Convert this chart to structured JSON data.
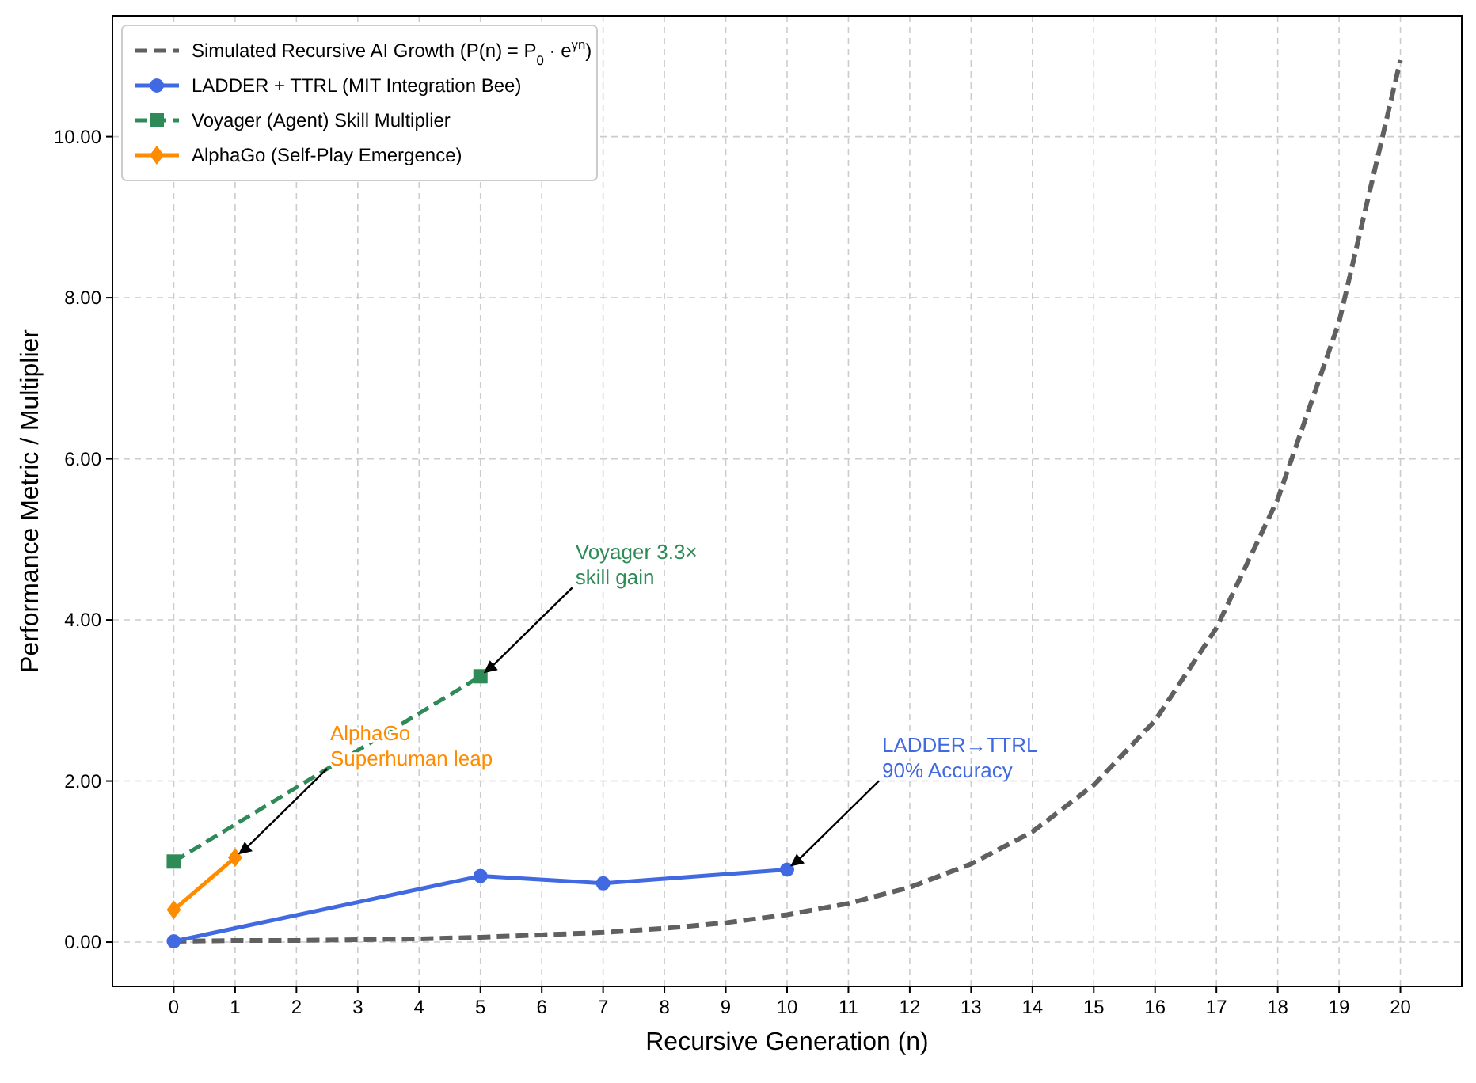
{
  "chart_data": {
    "type": "line",
    "xlabel": "Recursive Generation (n)",
    "ylabel": "Performance Metric / Multiplier",
    "xlim": [
      -1,
      21
    ],
    "ylim": [
      -0.55,
      11.5
    ],
    "xticks": [
      0,
      1,
      2,
      3,
      4,
      5,
      6,
      7,
      8,
      9,
      10,
      11,
      12,
      13,
      14,
      15,
      16,
      17,
      18,
      19,
      20
    ],
    "yticks": [
      {
        "value": 0,
        "label": "0.00"
      },
      {
        "value": 2,
        "label": "2.00"
      },
      {
        "value": 4,
        "label": "4.00"
      },
      {
        "value": 6,
        "label": "6.00"
      },
      {
        "value": 8,
        "label": "8.00"
      },
      {
        "value": 10,
        "label": "10.00"
      }
    ],
    "grid": true,
    "legend": "top left",
    "series": [
      {
        "name": "Simulated Recursive AI Growth (P(n) = P$_{0}$ · e$^{γn}$)",
        "color": "#606060",
        "line_style": "dashed",
        "marker": "none",
        "x": [
          0,
          1,
          2,
          3,
          4,
          5,
          6,
          7,
          8,
          9,
          10,
          11,
          12,
          13,
          14,
          15,
          16,
          17,
          18,
          19,
          20
        ],
        "values": [
          0.01,
          0.02,
          0.02,
          0.03,
          0.04,
          0.06,
          0.09,
          0.12,
          0.17,
          0.24,
          0.34,
          0.48,
          0.68,
          0.97,
          1.37,
          1.95,
          2.75,
          3.9,
          5.5,
          7.7,
          10.95
        ]
      },
      {
        "name": "LADDER + TTRL (MIT Integration Bee)",
        "color": "#4169e1",
        "line_style": "solid",
        "marker": "circle",
        "x": [
          0,
          5,
          7,
          10
        ],
        "values": [
          0.01,
          0.82,
          0.73,
          0.9
        ]
      },
      {
        "name": "Voyager (Agent) Skill Multiplier",
        "color": "#2e8b57",
        "line_style": "dashed",
        "marker": "square",
        "x": [
          0,
          5
        ],
        "values": [
          1.0,
          3.3
        ]
      },
      {
        "name": "AlphaGo (Self-Play Emergence)",
        "color": "#ff8c00",
        "line_style": "solid",
        "marker": "diamond",
        "x": [
          0,
          1
        ],
        "values": [
          0.4,
          1.05
        ]
      }
    ],
    "annotations": [
      {
        "text": "Voyager 3.3×\nskill gain",
        "x": 5,
        "y": 3.3
      },
      {
        "text": "AlphaGo\nSuperhuman leap",
        "x": 1,
        "y": 1.05
      },
      {
        "text": "LADDER→TTRL\n90% Accuracy",
        "x": 10,
        "y": 0.9
      }
    ]
  }
}
